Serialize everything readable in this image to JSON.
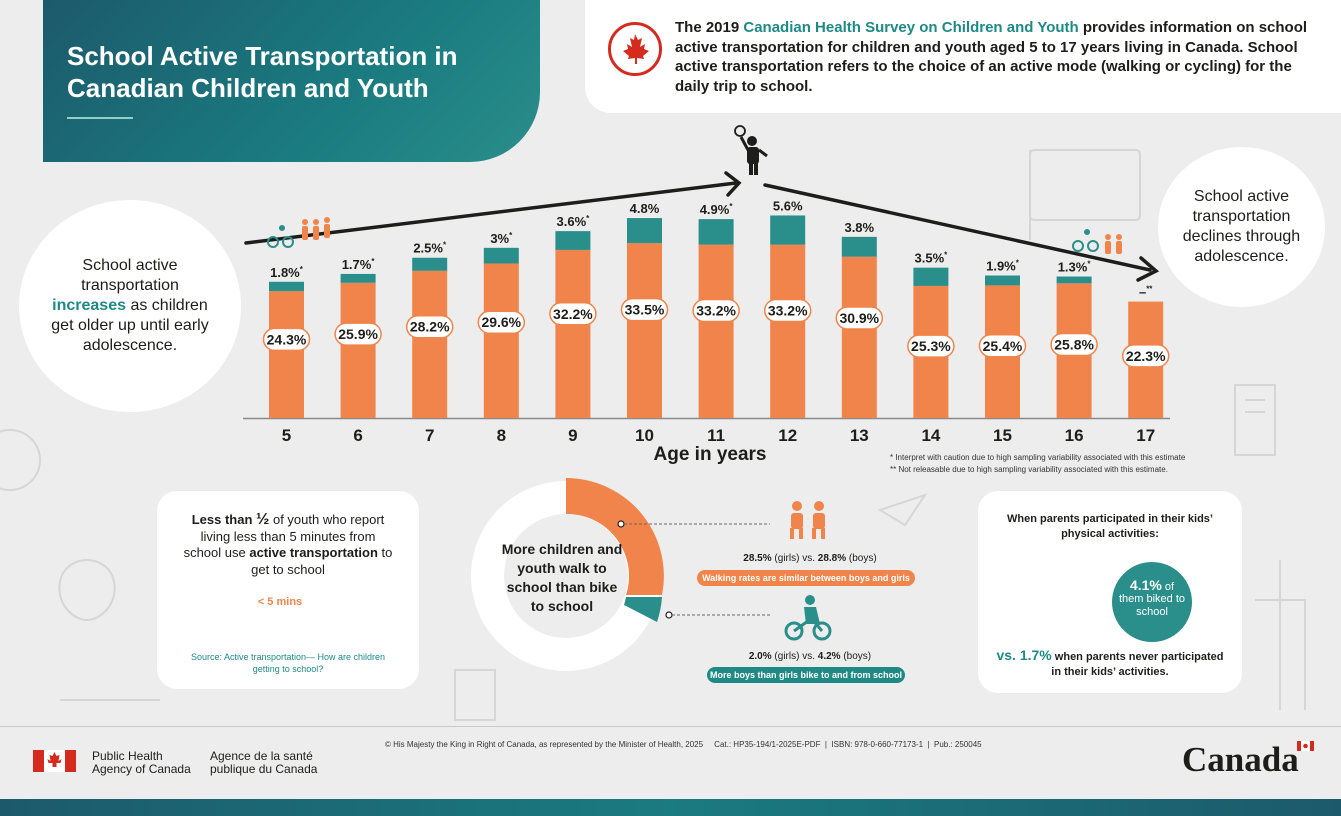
{
  "title": "School Active Transportation in Canadian Children and Youth",
  "intro": {
    "prefix": "The 2019 ",
    "survey_name": "Canadian Health Survey on Children and Youth",
    "suffix": " provides information on school active transportation for children and youth aged 5 to 17 years living in Canada. School active transportation refers to the choice of an active mode (walking or cycling) for the daily trip to school."
  },
  "left_note": {
    "before": "School active transportation ",
    "emphasis": "increases",
    "after": " as children get older up until early adolescence."
  },
  "right_note": "School active transportation declines through adolescence.",
  "chart_data": {
    "type": "bar",
    "stacked": true,
    "categories": [
      "5",
      "6",
      "7",
      "8",
      "9",
      "10",
      "11",
      "12",
      "13",
      "14",
      "15",
      "16",
      "17"
    ],
    "series": [
      {
        "values": [
          24.3,
          25.9,
          28.2,
          29.6,
          32.2,
          33.5,
          33.2,
          33.2,
          30.9,
          25.3,
          25.4,
          25.8,
          22.3
        ],
        "color": "#f0844a",
        "labels": [
          "24.3%",
          "25.9%",
          "28.2%",
          "29.6%",
          "32.2%",
          "33.5%",
          "33.2%",
          "33.2%",
          "30.9%",
          "25.3%",
          "25.4%",
          "25.8%",
          "22.3%"
        ]
      },
      {
        "values": [
          1.8,
          1.7,
          2.5,
          3.0,
          3.6,
          4.8,
          4.9,
          5.6,
          3.8,
          3.5,
          1.9,
          1.3,
          null
        ],
        "color": "#2a8e8a",
        "labels": [
          "1.8%",
          "1.7%",
          "2.5%",
          "3%",
          "3.6%",
          "4.8%",
          "4.9%",
          "5.6%",
          "3.8%",
          "3.5%",
          "1.9%",
          "1.3%",
          "–"
        ],
        "markers": [
          "*",
          "*",
          "*",
          "*",
          "*",
          "",
          "*",
          "",
          "",
          "*",
          "*",
          "*",
          "**"
        ]
      }
    ],
    "xlabel": "Age in years",
    "footnotes": [
      "*   Interpret with caution due to high sampling variability associated with this estimate",
      "**  Not releasable due to high sampling variability associated with this estimate."
    ]
  },
  "proximity_card": {
    "text_1": "Less than ",
    "fraction": "½",
    "text_2": " of youth who report living less than 5 minutes from school use ",
    "text_bold": "active transportation",
    "text_3": " to get to school",
    "duration": "< 5 mins",
    "source": "Source: Active transportation— How are children getting to school?"
  },
  "mode_split": {
    "center_text": "More children and youth walk to school than bike to school",
    "walk": {
      "girls": "28.5%",
      "boys": "28.8%",
      "label": "Walking rates are similar between boys and girls"
    },
    "bike": {
      "girls": "2.0%",
      "boys": "4.2%",
      "label": "More boys than girls bike to and from school"
    },
    "girls_word": "(girls)",
    "vs_word": " vs. ",
    "boys_word": "(boys)"
  },
  "parents_card": {
    "title": "When parents participated in their kids’ physical activities:",
    "value": "4.1%",
    "value_suffix": " of",
    "value_text": "them biked to school",
    "comparison_value": "vs. 1.7%",
    "comparison_text": " when parents never participated in their kids’ activities."
  },
  "footer": {
    "agency_en_1": "Public Health",
    "agency_en_2": "Agency of Canada",
    "agency_fr_1": "Agence de la santé",
    "agency_fr_2": "publique du Canada",
    "copyright": "© His Majesty the King in Right of Canada, as represented by the Minister of Health, 2025     Cat.: HP35-194/1-2025E-PDF  |  ISBN: 978-0-660-77173-1  |  Pub.: 250045",
    "wordmark": "Canada"
  },
  "colors": {
    "walk": "#f0844a",
    "bike": "#2a8e8a",
    "title_bg": "#1a7b80",
    "flag_red": "#d52b1e"
  }
}
